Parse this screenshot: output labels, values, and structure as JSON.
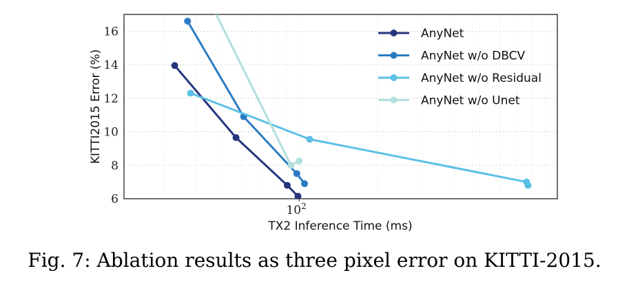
{
  "caption": "Fig. 7: Ablation results as three pixel error on KITTI-2015.",
  "chart_data": {
    "type": "line",
    "xlabel": "TX2 Inference Time (ms)",
    "ylabel": "KITTI2015 Error (%)",
    "x_scale": "log",
    "xlim": [
      21,
      1000
    ],
    "ylim": [
      6,
      17
    ],
    "x_ticks": [
      {
        "value": 100,
        "label": "10",
        "exponent": "2"
      }
    ],
    "y_ticks": [
      6,
      8,
      10,
      12,
      14,
      16
    ],
    "grid": true,
    "legend_position": "top-right",
    "series": [
      {
        "name": "AnyNet",
        "color": "#27357d",
        "x": [
          33,
          57,
          90,
          99
        ],
        "y": [
          13.95,
          9.65,
          6.8,
          6.15
        ]
      },
      {
        "name": "AnyNet w/o DBCV",
        "color": "#2b7bc1",
        "x": [
          37,
          61,
          98,
          105
        ],
        "y": [
          16.6,
          10.9,
          7.5,
          6.9
        ]
      },
      {
        "name": "AnyNet w/o Residual",
        "color": "#5cbfe6",
        "x": [
          38,
          110,
          760,
          770
        ],
        "y": [
          12.3,
          9.55,
          7.0,
          6.8
        ]
      },
      {
        "name": "AnyNet w/o Unet",
        "color": "#b1e0dc",
        "x": [
          46,
          93,
          100
        ],
        "y": [
          17.5,
          8.0,
          8.25
        ]
      }
    ]
  }
}
